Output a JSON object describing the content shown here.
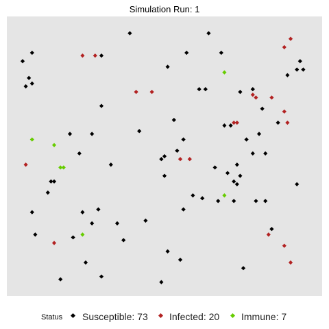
{
  "chart_data": {
    "type": "scatter",
    "title": "Simulation Run: 1",
    "xlim": [
      0,
      100
    ],
    "ylim": [
      0,
      100
    ],
    "grid": false,
    "background": "#e5e5e5",
    "legend_position": "bottom",
    "legend_title": "Status",
    "series": [
      {
        "name": "Susceptible: 73",
        "color": "#000000",
        "points": [
          [
            39,
            94
          ],
          [
            64,
            94
          ],
          [
            8,
            87
          ],
          [
            5,
            84
          ],
          [
            30,
            86
          ],
          [
            57,
            87
          ],
          [
            68,
            87
          ],
          [
            93,
            84
          ],
          [
            51,
            82
          ],
          [
            92,
            81
          ],
          [
            94,
            81
          ],
          [
            89,
            79
          ],
          [
            7,
            78
          ],
          [
            8,
            76
          ],
          [
            6,
            75
          ],
          [
            61,
            74
          ],
          [
            63,
            74
          ],
          [
            74,
            73
          ],
          [
            78,
            74
          ],
          [
            30,
            68
          ],
          [
            81,
            67
          ],
          [
            53,
            63
          ],
          [
            71,
            61
          ],
          [
            86,
            62
          ],
          [
            69,
            61
          ],
          [
            20,
            58
          ],
          [
            42,
            59
          ],
          [
            27,
            58
          ],
          [
            80,
            58
          ],
          [
            76,
            56
          ],
          [
            56,
            56
          ],
          [
            54,
            52
          ],
          [
            50,
            50
          ],
          [
            49,
            49
          ],
          [
            23,
            51
          ],
          [
            78,
            51
          ],
          [
            82,
            51
          ],
          [
            73,
            47
          ],
          [
            8,
            30
          ],
          [
            33,
            47
          ],
          [
            66,
            46
          ],
          [
            70,
            44
          ],
          [
            50,
            43
          ],
          [
            74,
            43
          ],
          [
            72,
            41
          ],
          [
            15,
            41
          ],
          [
            14,
            41
          ],
          [
            73,
            40
          ],
          [
            92,
            40
          ],
          [
            13,
            37
          ],
          [
            59,
            36
          ],
          [
            62,
            35
          ],
          [
            67,
            34
          ],
          [
            72,
            34
          ],
          [
            79,
            34
          ],
          [
            82,
            34
          ],
          [
            24,
            30
          ],
          [
            29,
            31
          ],
          [
            56,
            31
          ],
          [
            27,
            26
          ],
          [
            35,
            26
          ],
          [
            44,
            27
          ],
          [
            84,
            24
          ],
          [
            9,
            22
          ],
          [
            21,
            21
          ],
          [
            37,
            20
          ],
          [
            51,
            16
          ],
          [
            25,
            12
          ],
          [
            55,
            13
          ],
          [
            75,
            10
          ],
          [
            17,
            6
          ],
          [
            30,
            7
          ],
          [
            49,
            5
          ]
        ]
      },
      {
        "name": "Infected: 20",
        "color": "#b22222",
        "points": [
          [
            24,
            86
          ],
          [
            28,
            86
          ],
          [
            88,
            89
          ],
          [
            90,
            92
          ],
          [
            41,
            73
          ],
          [
            46,
            73
          ],
          [
            78,
            72
          ],
          [
            79,
            71
          ],
          [
            84,
            71
          ],
          [
            88,
            66
          ],
          [
            89,
            62
          ],
          [
            72,
            62
          ],
          [
            73,
            62
          ],
          [
            55,
            49
          ],
          [
            58,
            49
          ],
          [
            6,
            47
          ],
          [
            83,
            22
          ],
          [
            15,
            19
          ],
          [
            88,
            18
          ],
          [
            90,
            12
          ]
        ]
      },
      {
        "name": "Immune: 7",
        "color": "#66cc00",
        "points": [
          [
            69,
            80
          ],
          [
            8,
            56
          ],
          [
            15,
            54
          ],
          [
            17,
            46
          ],
          [
            18,
            46
          ],
          [
            69,
            36
          ],
          [
            24,
            22
          ]
        ]
      }
    ]
  }
}
